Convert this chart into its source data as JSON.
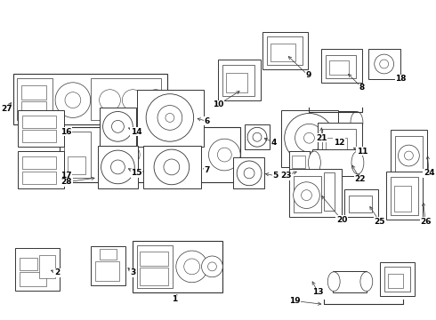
{
  "bg_color": "#ffffff",
  "line_color": "#333333",
  "label_color": "#000000"
}
